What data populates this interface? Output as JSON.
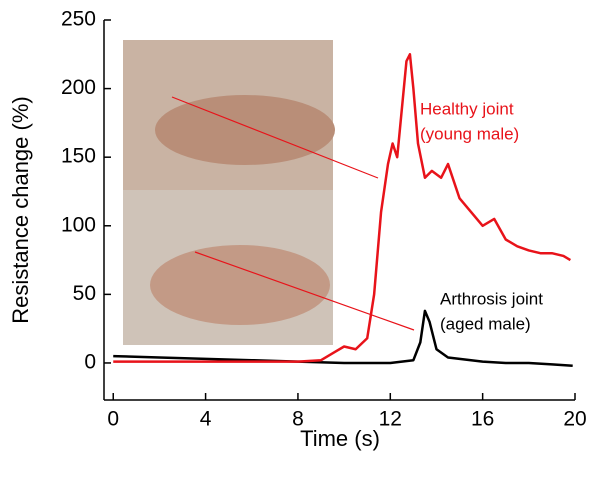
{
  "chart_data": {
    "type": "line",
    "x_label": "Time (s)",
    "y_label": "Resistance change (%)",
    "xlim": [
      -0.4,
      20
    ],
    "xticks": [
      0,
      4,
      8,
      12,
      16,
      20
    ],
    "ylim": [
      -27,
      250
    ],
    "yticks": [
      0,
      50,
      100,
      150,
      200,
      250
    ],
    "series": [
      {
        "name": "Healthy joint",
        "color": "#e8131a",
        "x": [
          0,
          4,
          8,
          9,
          9.6,
          10,
          10.5,
          11,
          11.3,
          11.6,
          11.9,
          12.1,
          12.3,
          12.5,
          12.7,
          12.85,
          13,
          13.2,
          13.5,
          13.8,
          14.2,
          14.5,
          15,
          15.5,
          16,
          16.5,
          17,
          17.5,
          18,
          18.5,
          19,
          19.5,
          19.8
        ],
        "values": [
          1,
          1,
          1,
          2,
          8,
          12,
          10,
          18,
          50,
          110,
          145,
          160,
          150,
          185,
          220,
          225,
          200,
          160,
          135,
          140,
          135,
          145,
          120,
          110,
          100,
          105,
          90,
          85,
          82,
          80,
          80,
          78,
          75
        ]
      },
      {
        "name": "Arthrosis joint",
        "color": "#000000",
        "x": [
          0,
          2,
          4,
          6,
          8,
          10,
          12,
          13,
          13.3,
          13.5,
          13.7,
          14,
          14.5,
          15,
          16,
          17,
          18,
          19,
          19.9
        ],
        "values": [
          5,
          4,
          3,
          2,
          1,
          0,
          0,
          2,
          15,
          38,
          30,
          10,
          4,
          3,
          1,
          0,
          0,
          -1,
          -2
        ]
      }
    ],
    "annotations": [
      {
        "lines": [
          "Healthy joint",
          "(young male)"
        ],
        "color": "#e8131a"
      },
      {
        "lines": [
          "Arthrosis joint",
          "(aged male)"
        ],
        "color": "#000000"
      }
    ]
  }
}
